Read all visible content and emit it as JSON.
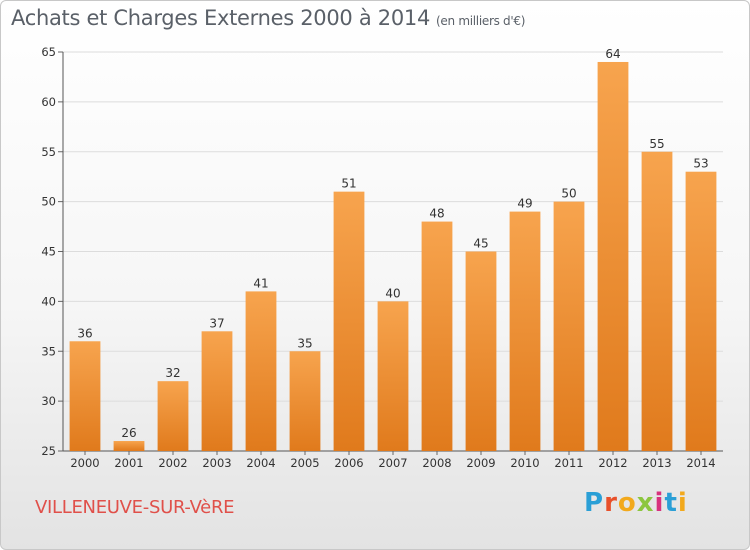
{
  "title": "Achats et Charges Externes 2000 à 2014",
  "subtitle": "(en milliers d'€)",
  "place": "VILLENEUVE-SUR-VèRE",
  "brand": {
    "text": "Proxiti",
    "colors": [
      "#2a9fd6",
      "#e8502a",
      "#f2a91c",
      "#8cc63f",
      "#d8327e",
      "#2a9fd6",
      "#f2a91c"
    ]
  },
  "chart_data": {
    "type": "bar",
    "categories": [
      "2000",
      "2001",
      "2002",
      "2003",
      "2004",
      "2005",
      "2006",
      "2007",
      "2008",
      "2009",
      "2010",
      "2011",
      "2012",
      "2013",
      "2014"
    ],
    "values": [
      36,
      26,
      32,
      37,
      41,
      35,
      51,
      40,
      48,
      45,
      49,
      50,
      64,
      55,
      53
    ],
    "ylim": [
      25,
      65
    ],
    "yticks": [
      25,
      30,
      35,
      40,
      45,
      50,
      55,
      60,
      65
    ],
    "grid": true,
    "bar_color_top": "#f7a44e",
    "bar_color_bottom": "#e07a1c"
  }
}
